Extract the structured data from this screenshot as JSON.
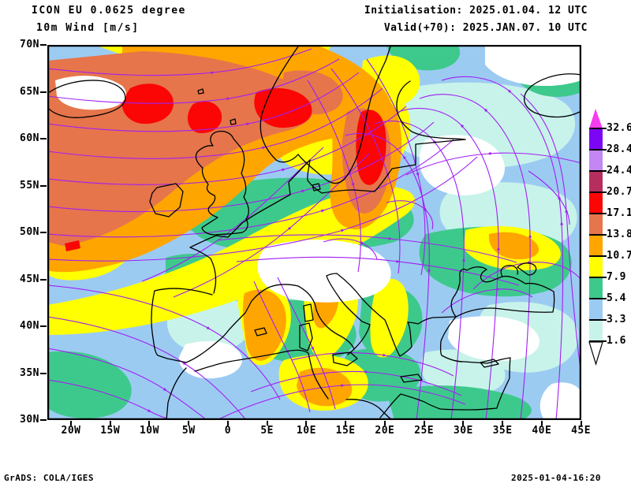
{
  "header": {
    "title_line1": "ICON EU 0.0625 degree",
    "title_line2": "10m Wind [m/s]",
    "init_label": "Initialisation: 2025.01.04. 12 UTC",
    "valid_label": "Valid(+70): 2025.JAN.07. 10 UTC"
  },
  "axes": {
    "lat_labels": [
      "70N",
      "65N",
      "60N",
      "55N",
      "50N",
      "45N",
      "40N",
      "35N",
      "30N"
    ],
    "lon_labels": [
      "20W",
      "15W",
      "10W",
      "5W",
      "0",
      "5E",
      "10E",
      "15E",
      "20E",
      "25E",
      "30E",
      "35E",
      "40E",
      "45E"
    ]
  },
  "colorbar": {
    "labels": [
      "32.6",
      "28.4",
      "24.4",
      "20.7",
      "17.1",
      "13.8",
      "10.7",
      "7.9",
      "5.4",
      "3.3",
      "1.6"
    ],
    "band_colors_top_to_bottom": [
      "#7d05f5",
      "#c287f2",
      "#b52e5e",
      "#fb0505",
      "#e6754b",
      "#ffa500",
      "#ffff00",
      "#3ec98c",
      "#9ccbf2",
      "#c8f3ea"
    ],
    "arrow_top_color": "#f53cf0",
    "arrow_bottom_color": "#ffffff",
    "scale_values_ms": [
      32.6,
      28.4,
      24.4,
      20.7,
      17.1,
      13.8,
      10.7,
      7.9,
      5.4,
      3.3,
      1.6
    ]
  },
  "footer": {
    "credit": "GrADS: COLA/IGES",
    "timestamp": "2025-01-04-16:20"
  },
  "map_info": {
    "field": "10m wind speed and streamlines",
    "lat_range": "30N to 70N",
    "lon_range": "20W to 45E",
    "streamline_color": "#a21ef5",
    "coastline_color": "#000000"
  }
}
